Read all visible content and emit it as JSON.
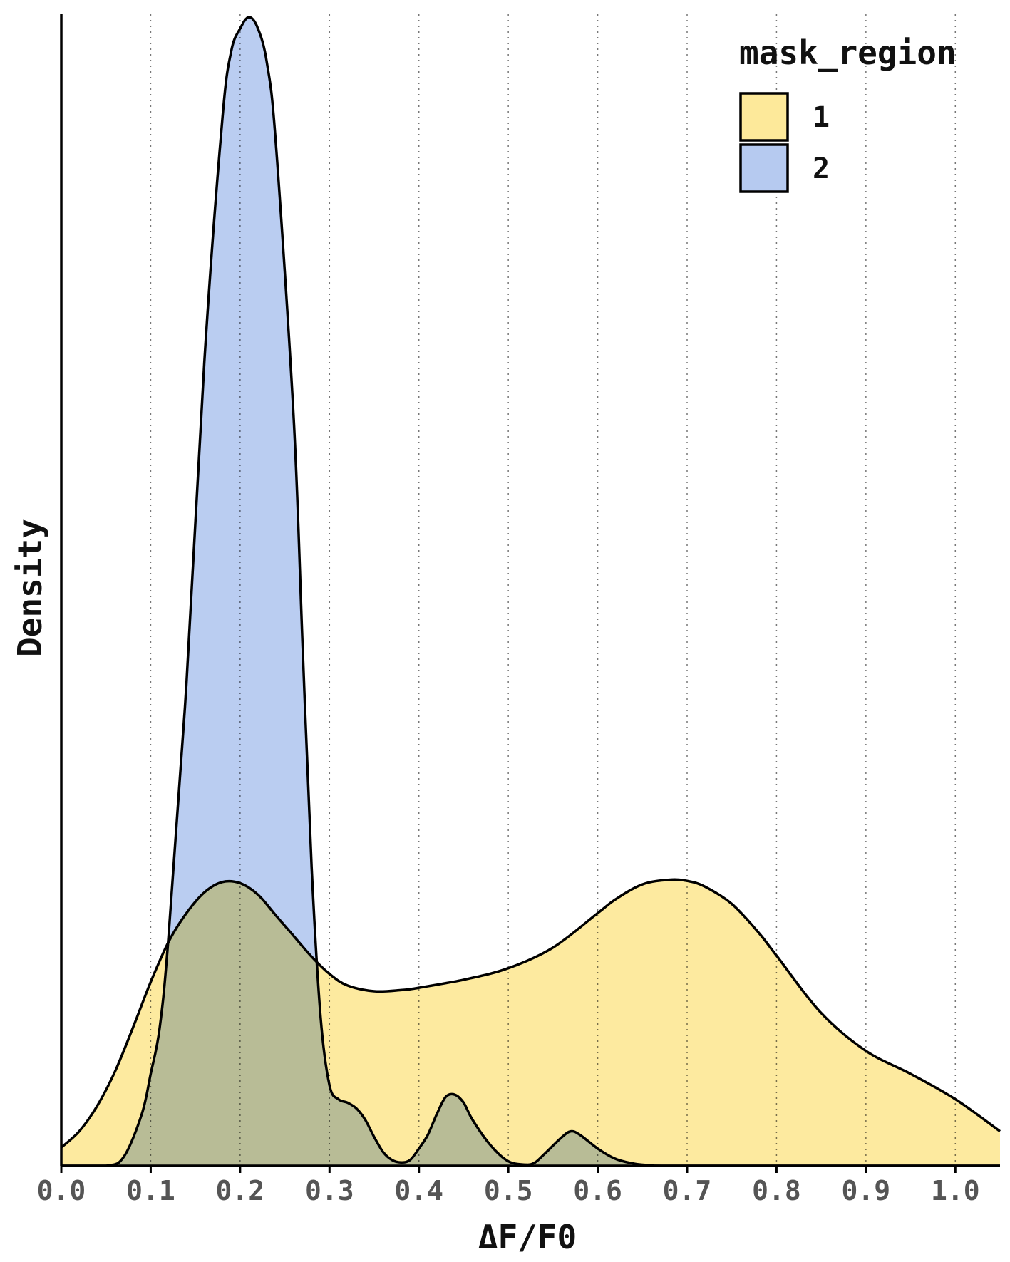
{
  "chart_data": {
    "type": "area",
    "title": "",
    "xlabel": "ΔF/F0",
    "ylabel": "Density",
    "xlim": [
      0.0,
      1.05
    ],
    "ylim": [
      0,
      1.0
    ],
    "x_ticks": [
      "0.0",
      "0.1",
      "0.2",
      "0.3",
      "0.4",
      "0.5",
      "0.6",
      "0.7",
      "0.8",
      "0.9",
      "1.0"
    ],
    "grid": "vertical dotted",
    "legend": {
      "title": "mask_region",
      "position": "top-right",
      "entries": [
        {
          "label": "1",
          "color": "#fde99a"
        },
        {
          "label": "2",
          "color": "#b6caf0"
        }
      ]
    },
    "y_units": "relative density (no y tick labels shown)",
    "series": [
      {
        "name": "1",
        "color": "#fde99a",
        "x": [
          0.0,
          0.02,
          0.04,
          0.06,
          0.08,
          0.1,
          0.12,
          0.14,
          0.16,
          0.18,
          0.2,
          0.22,
          0.24,
          0.26,
          0.28,
          0.3,
          0.32,
          0.35,
          0.38,
          0.4,
          0.45,
          0.5,
          0.55,
          0.6,
          0.62,
          0.65,
          0.68,
          0.7,
          0.72,
          0.75,
          0.78,
          0.8,
          0.85,
          0.9,
          0.95,
          1.0,
          1.05
        ],
        "values": [
          0.016,
          0.03,
          0.052,
          0.082,
          0.12,
          0.16,
          0.195,
          0.22,
          0.238,
          0.247,
          0.246,
          0.236,
          0.218,
          0.2,
          0.182,
          0.167,
          0.157,
          0.152,
          0.153,
          0.155,
          0.162,
          0.172,
          0.19,
          0.22,
          0.232,
          0.245,
          0.249,
          0.248,
          0.243,
          0.228,
          0.203,
          0.183,
          0.133,
          0.1,
          0.08,
          0.058,
          0.03
        ]
      },
      {
        "name": "2",
        "color": "#b6caf0",
        "x": [
          0.0,
          0.05,
          0.07,
          0.09,
          0.1,
          0.11,
          0.12,
          0.14,
          0.16,
          0.18,
          0.19,
          0.2,
          0.21,
          0.22,
          0.23,
          0.24,
          0.26,
          0.27,
          0.28,
          0.29,
          0.3,
          0.31,
          0.32,
          0.33,
          0.34,
          0.35,
          0.36,
          0.37,
          0.38,
          0.39,
          0.4,
          0.41,
          0.42,
          0.43,
          0.44,
          0.45,
          0.46,
          0.48,
          0.5,
          0.52,
          0.53,
          0.54,
          0.56,
          0.57,
          0.58,
          0.6,
          0.62,
          0.64,
          0.66,
          0.7,
          1.05
        ],
        "values": [
          0.0,
          0.0,
          0.008,
          0.045,
          0.08,
          0.12,
          0.2,
          0.42,
          0.7,
          0.91,
          0.97,
          0.99,
          1.0,
          0.99,
          0.96,
          0.89,
          0.65,
          0.45,
          0.26,
          0.13,
          0.07,
          0.058,
          0.055,
          0.05,
          0.04,
          0.025,
          0.012,
          0.005,
          0.003,
          0.005,
          0.015,
          0.027,
          0.045,
          0.06,
          0.062,
          0.055,
          0.04,
          0.018,
          0.004,
          0.001,
          0.003,
          0.01,
          0.025,
          0.03,
          0.027,
          0.015,
          0.006,
          0.002,
          0.0005,
          0.0,
          0.0
        ]
      }
    ]
  }
}
